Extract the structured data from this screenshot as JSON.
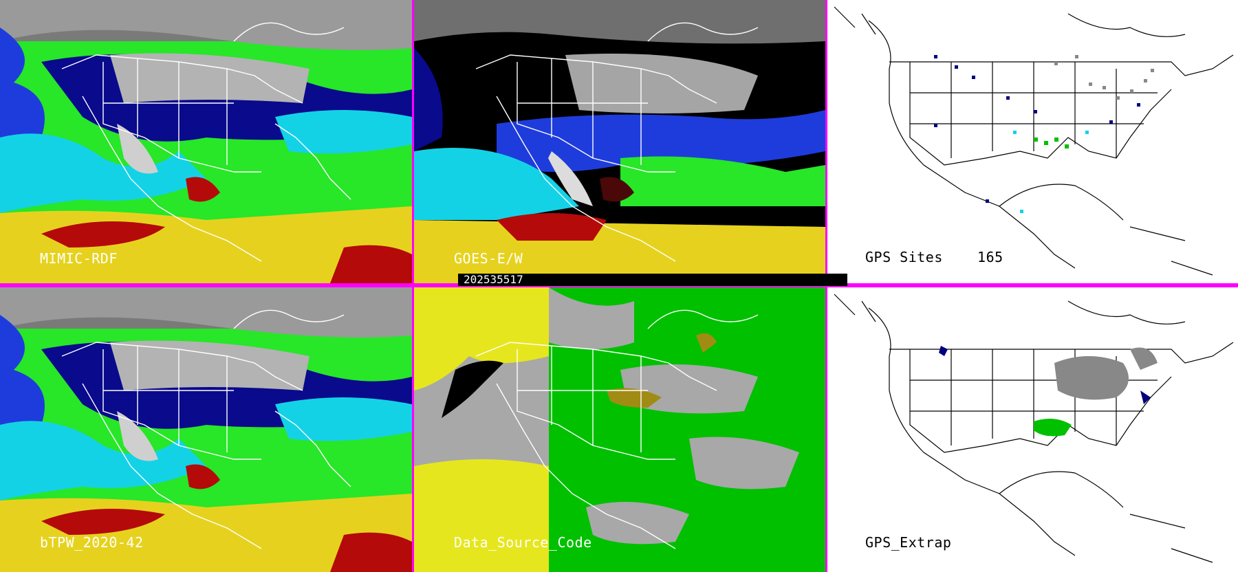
{
  "panels": [
    {
      "id": "mimic",
      "label": "MIMIC-RDF",
      "style": "water-vapor"
    },
    {
      "id": "goes",
      "label": "GOES-E/W",
      "style": "water-vapor-masked"
    },
    {
      "id": "gps",
      "label": "GPS Sites    165",
      "style": "station-map"
    },
    {
      "id": "btpw",
      "label": "bTPW_2020-42",
      "style": "water-vapor"
    },
    {
      "id": "dsc",
      "label": "Data_Source_Code",
      "style": "source-code"
    },
    {
      "id": "gpsx",
      "label": "GPS_Extrap",
      "style": "station-map-extrap"
    }
  ],
  "timestamp": "202535517",
  "colors": {
    "divider": "#ff00ff",
    "tpw_very_low": "#0a0a8c",
    "tpw_low": "#1e3cdc",
    "tpw_mid": "#14d2e6",
    "tpw_mid_high": "#28e628",
    "tpw_high": "#e6d21e",
    "tpw_very_high": "#b40a0a",
    "cloud": "#bfbfbf",
    "dsc_green": "#00c000",
    "dsc_yellow": "#e6e61e",
    "dsc_gray": "#a8a8a8",
    "dsc_olive": "#a08c14"
  }
}
